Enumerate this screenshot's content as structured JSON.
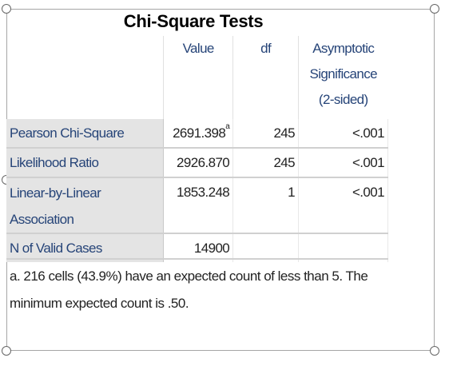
{
  "title": "Chi-Square Tests",
  "columns": {
    "value": "Value",
    "df": "df",
    "sig_line1": "Asymptotic",
    "sig_line2": "Significance",
    "sig_line3": "(2-sided)"
  },
  "rows": [
    {
      "label": "Pearson Chi-Square",
      "value": "2691.398",
      "mark": "a",
      "df": "245",
      "sig": "<.001"
    },
    {
      "label": "Likelihood Ratio",
      "value": "2926.870",
      "df": "245",
      "sig": "<.001"
    },
    {
      "label_line1": "Linear-by-Linear",
      "label_line2": "Association",
      "value": "1853.248",
      "df": "1",
      "sig": "<.001"
    },
    {
      "label": "N of Valid Cases",
      "value": "14900"
    }
  ],
  "footnote": {
    "line1": "a. 216 cells (43.9%) have an expected count of less than 5. The",
    "line2": "minimum expected count is .50."
  }
}
